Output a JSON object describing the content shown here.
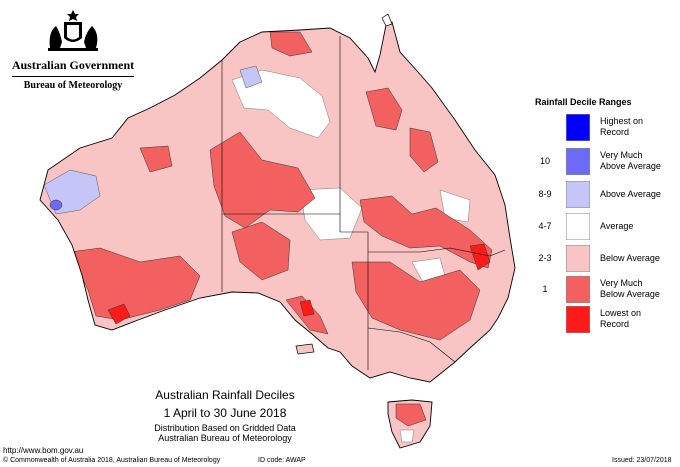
{
  "header": {
    "government": "Australian Government",
    "bureau": "Bureau of Meteorology",
    "crest_icon": "commonwealth-coat-of-arms"
  },
  "legend": {
    "title": "Rainfall Decile Ranges",
    "entries": [
      {
        "range": "",
        "label_line1": "Highest on",
        "label_line2": "Record",
        "color": "#0000ff"
      },
      {
        "range": "10",
        "label_line1": "Very Much",
        "label_line2": "Above Average",
        "color": "#6b6bf5"
      },
      {
        "range": "8-9",
        "label_line1": "Above Average",
        "label_line2": "",
        "color": "#c5c5f7"
      },
      {
        "range": "4-7",
        "label_line1": "Average",
        "label_line2": "",
        "color": "#ffffff"
      },
      {
        "range": "2-3",
        "label_line1": "Below Average",
        "label_line2": "",
        "color": "#f8c4c4"
      },
      {
        "range": "1",
        "label_line1": "Very Much",
        "label_line2": "Below Average",
        "color": "#f26060"
      },
      {
        "range": "",
        "label_line1": "Lowest on",
        "label_line2": "Record",
        "color": "#ff1a1a"
      }
    ]
  },
  "caption": {
    "title": "Australian Rainfall Deciles",
    "period": "1 April to 30 June 2018",
    "basis": "Distribution Based on Gridded Data",
    "source": "Australian Bureau of Meteorology"
  },
  "footer": {
    "url": "http://www.bom.gov.au",
    "copyright": "© Commonwealth of Australia 2018, Australian Bureau of Meteorology",
    "id_code": "ID code: AWAP",
    "issued": "Issued: 23/07/2018"
  },
  "map_colors": {
    "outline": "#000000",
    "state_border": "#000000",
    "below_average": "#f8c4c4",
    "very_much_below": "#f26060",
    "lowest": "#ff1a1a",
    "above_average": "#c5c5f7",
    "very_much_above": "#6b6bf5",
    "average": "#ffffff"
  }
}
